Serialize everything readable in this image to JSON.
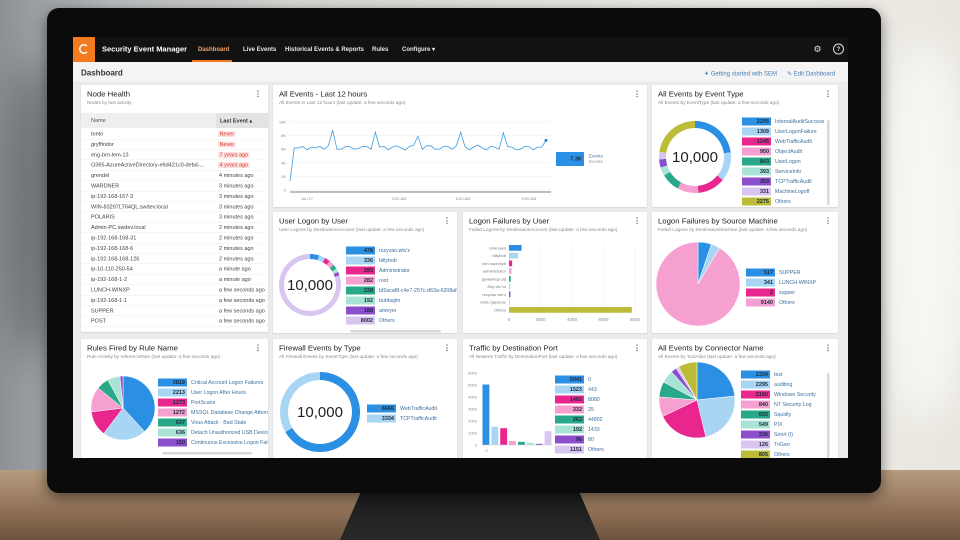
{
  "app": {
    "title": "Security Event Manager",
    "tabs": [
      "Dashboard",
      "Live Events",
      "Historical Events & Reports",
      "Rules",
      "Configure ▾"
    ],
    "active_tab": "Dashboard",
    "icons": [
      "gear-icon",
      "help-icon"
    ]
  },
  "subheader": {
    "title": "Dashboard",
    "getting_started": "Getting started with SEM",
    "edit": "Edit Dashboard"
  },
  "palette": [
    "#2b8fe3",
    "#a9d5f5",
    "#e8268e",
    "#f5a0d0",
    "#2aa98a",
    "#a8e3d5",
    "#8b4fcb",
    "#d9c6f0",
    "#bcbc38"
  ],
  "node_health": {
    "title": "Node Health",
    "subtitle": "Nodes by last activity",
    "columns": [
      "Name",
      "Last Event ▴"
    ],
    "rows": [
      [
        "tonto",
        "Never",
        true
      ],
      [
        "gryffindor",
        "Never",
        true
      ],
      [
        "eng-brn-lem-13",
        "7 years ago",
        true
      ],
      [
        "O365-AzureActiveDirectory-e6d421c0-debd-...",
        "4 years ago",
        true
      ],
      [
        "grendel",
        "4 minutes ago",
        false
      ],
      [
        "WARDNER",
        "3 minutes ago",
        false
      ],
      [
        "ip-192-168-167-3",
        "3 minutes ago",
        false
      ],
      [
        "WIN-83297LT64QL.swdev.local",
        "3 minutes ago",
        false
      ],
      [
        "POLARIS",
        "3 minutes ago",
        false
      ],
      [
        "Admin-PC.swdev.local",
        "2 minutes ago",
        false
      ],
      [
        "ip-192-168-168-31",
        "2 minutes ago",
        false
      ],
      [
        "ip-192-168-168-6",
        "2 minutes ago",
        false
      ],
      [
        "ip-192-168-168-126",
        "2 minutes ago",
        false
      ],
      [
        "ip-10-110-250-54",
        "a minute ago",
        false
      ],
      [
        "ip-192-168-1-2",
        "a minute ago",
        false
      ],
      [
        "LUNCH-WINXP",
        "a few seconds ago",
        false
      ],
      [
        "ip-192-168-1-1",
        "a few seconds ago",
        false
      ],
      [
        "SUPPER",
        "a few seconds ago",
        false
      ],
      [
        "POST",
        "a few seconds ago",
        false
      ]
    ]
  },
  "chart_data": [
    {
      "id": "all-events",
      "type": "line",
      "title": "All Events - Last 12 hours",
      "subtitle": "All Events in Last 12 hours (last update: a few seconds ago)",
      "ylim": [
        0,
        10000
      ],
      "yticks": [
        "0",
        "2K",
        "4K",
        "6K",
        "8K",
        "10K"
      ],
      "xticks": [
        "Jun 17",
        "3:00 AM",
        "6:00 AM",
        "9:00 AM"
      ],
      "legend": {
        "value": "7.3K",
        "name": "Events",
        "sub": "Events"
      },
      "values": [
        1300,
        6200,
        6200,
        6400,
        5900,
        6300,
        6200,
        6400,
        6000,
        6500,
        8800,
        6000,
        6000,
        6400,
        6400,
        6000,
        6100,
        6400,
        6400,
        6000,
        8500,
        6300,
        6400,
        5900,
        6300,
        6500,
        6200,
        5900,
        6400,
        6600,
        7900,
        6000,
        6500,
        6500,
        6000,
        6000,
        6400,
        6400,
        6000,
        6500,
        8500,
        6400,
        5900,
        6300,
        6600,
        6200,
        5900,
        6400,
        6300,
        6000,
        8400,
        6400,
        6300,
        5900,
        6000,
        6400,
        6400,
        5900,
        6300,
        6300,
        7300
      ]
    },
    {
      "id": "event-type",
      "type": "donut",
      "title": "All Events by Event Type",
      "subtitle": "All Events by EventType (last update: a few seconds ago)",
      "total": "10,000",
      "labels": [
        "InternalAuditSuccess",
        "UserLogonFailure",
        "WebTrafficAudit",
        "ObjectAudit",
        "UserLogon",
        "ServiceInfo",
        "TCPTrafficAudit",
        "MachineLogoff",
        "Others"
      ],
      "values": [
        2295,
        1309,
        1245,
        950,
        843,
        393,
        359,
        331,
        2275
      ]
    },
    {
      "id": "user-logon",
      "type": "donut",
      "title": "User Logon by User",
      "subtitle": "User Logons by DestinationAccount (last update: a few seconds ago)",
      "total": "10,000",
      "labels": [
        "rszyvao.wtv'z",
        "billybob",
        "Administrator",
        "root",
        "bf2acaf8-c4e7-257c-d63a-6208afc",
        "bubbajim",
        "ameyer",
        "Others"
      ],
      "values": [
        476,
        336,
        285,
        282,
        239,
        192,
        188,
        8002
      ],
      "colors_idx": [
        0,
        1,
        2,
        3,
        4,
        5,
        6,
        7
      ]
    },
    {
      "id": "logon-fail-user",
      "type": "bar",
      "orientation": "horizontal",
      "title": "Logon Failures by User",
      "subtitle": "Failed Logons by DestinationAccount (last update: a few seconds ago)",
      "xlim": [
        0,
        8000
      ],
      "xticks": [
        "0",
        "2000",
        "4000",
        "6000",
        "8000"
      ],
      "categories": [
        "Unknown",
        "billybob",
        "rsm ouprzsyb",
        "administrator",
        "gewlefeqa cljt",
        "Ekp vlk hn",
        "rszyvao wtv'z",
        "rzvku gapsede",
        "Others"
      ],
      "values": [
        800,
        580,
        200,
        160,
        110,
        80,
        90,
        50,
        7800
      ],
      "colors_idx": [
        0,
        1,
        2,
        3,
        4,
        5,
        6,
        7,
        8
      ]
    },
    {
      "id": "src-machine",
      "type": "pie",
      "title": "Logon Failures by Source Machine",
      "subtitle": "Failed Logons by DestinationMachine (last update: a few seconds ago)",
      "labels": [
        "SUPPER",
        "LUNCH-WINXP",
        "supper",
        "Others"
      ],
      "values": [
        517,
        341,
        2,
        9140
      ],
      "colors_idx": [
        0,
        1,
        2,
        3
      ]
    },
    {
      "id": "rules-fired",
      "type": "pie",
      "title": "Rules Fired by Rule Name",
      "subtitle": "Rule Activity by InferenceRule (last update: a few seconds ago)",
      "labels": [
        "Critical Account Logon Failures",
        "User Logon After Hours",
        "PortScans",
        "MSSQL Database Change Attemp",
        "Virus Attack - Bad State",
        "Detach Unauthorized USB Device",
        "Continuous Excessive Logon Fails"
      ],
      "values": [
        3819,
        2213,
        1273,
        1272,
        637,
        636,
        150
      ],
      "colors_idx": [
        0,
        1,
        2,
        3,
        4,
        5,
        6
      ]
    },
    {
      "id": "firewall",
      "type": "donut",
      "title": "Firewall Events by Type",
      "subtitle": "All Firewall Events by EventType (last update: a few seconds ago)",
      "total": "10,000",
      "labels": [
        "WebTrafficAudit",
        "TCPTrafficAudit"
      ],
      "values": [
        6666,
        3334
      ],
      "colors_idx": [
        0,
        1
      ]
    },
    {
      "id": "dest-port",
      "type": "bar",
      "orientation": "vertical",
      "title": "Traffic by Destination Port",
      "subtitle": "All Network Traffic by DestinationPort (last update: a few seconds ago)",
      "ylim": [
        0,
        6000
      ],
      "yticks": [
        "0",
        "1000",
        "2000",
        "3000",
        "4000",
        "5000",
        "6000"
      ],
      "xtick": "0",
      "categories": [
        "0",
        "443",
        "8080",
        "25",
        "44802",
        "1433",
        "80",
        "Others"
      ],
      "values": [
        5041,
        1523,
        1403,
        332,
        262,
        192,
        96,
        1151
      ],
      "colors_idx": [
        0,
        1,
        2,
        3,
        4,
        5,
        6,
        7
      ]
    },
    {
      "id": "connector",
      "type": "pie",
      "title": "All Events by Connector Name",
      "subtitle": "All Events by ToolAlias (last update: a few seconds ago)",
      "labels": [
        "test",
        "auditing",
        "Windows Security",
        "NT Security Log",
        "Squidly",
        "PIX",
        "Snort (I)",
        "TriGeo",
        "Others"
      ],
      "values": [
        2334,
        2295,
        2160,
        840,
        655,
        549,
        236,
        126,
        805
      ]
    }
  ]
}
